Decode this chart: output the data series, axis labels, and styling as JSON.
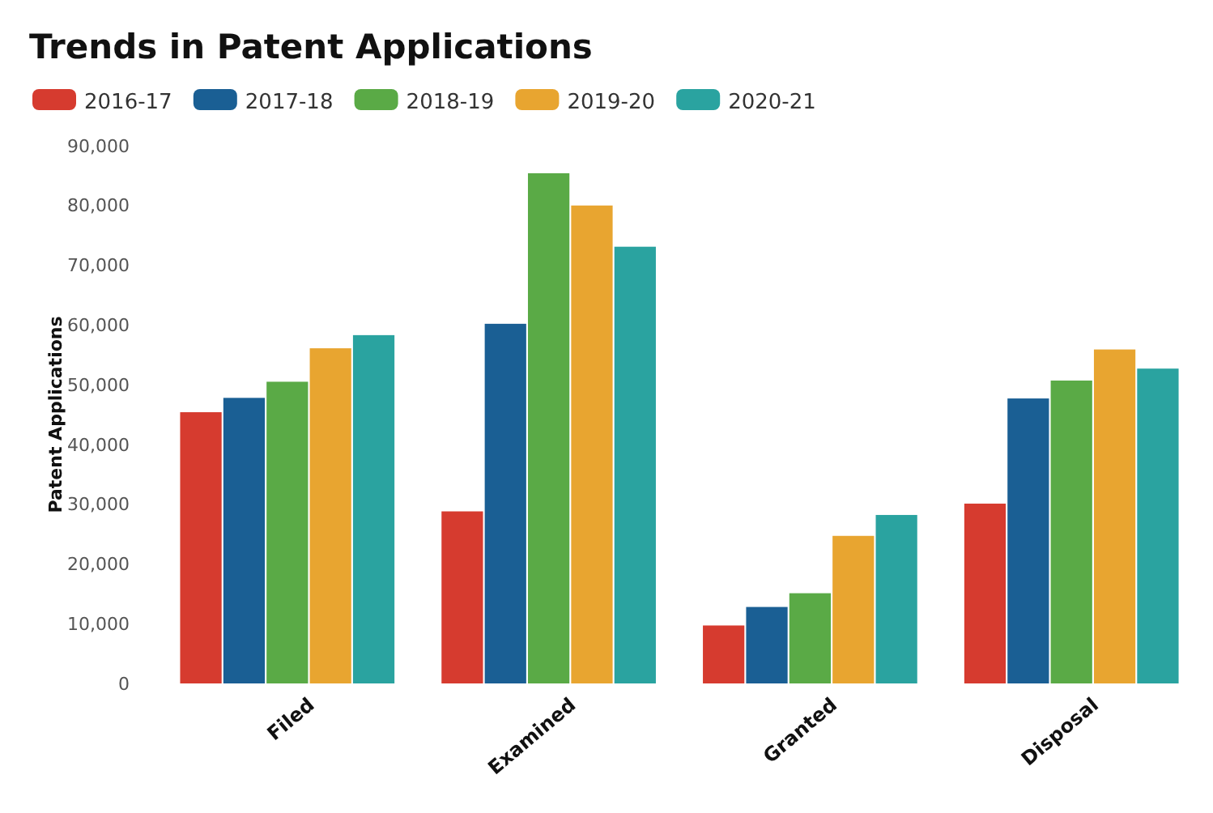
{
  "chart_data": {
    "type": "bar",
    "title": "Trends in Patent Applications",
    "ylabel": "Patent Applications",
    "categories": [
      "Filed",
      "Examined",
      "Granted",
      "Disposal"
    ],
    "series": [
      {
        "name": "2016-17",
        "color": "#d63b2f",
        "values": [
          45400,
          28800,
          9700,
          30100
        ]
      },
      {
        "name": "2017-18",
        "color": "#1a5f94",
        "values": [
          47800,
          60200,
          12800,
          47700
        ]
      },
      {
        "name": "2018-19",
        "color": "#5aaa46",
        "values": [
          50500,
          85400,
          15100,
          50700
        ]
      },
      {
        "name": "2019-20",
        "color": "#e8a530",
        "values": [
          56100,
          80000,
          24700,
          55900
        ]
      },
      {
        "name": "2020-21",
        "color": "#2aa3a0",
        "values": [
          58300,
          73100,
          28200,
          52700
        ]
      }
    ],
    "ylim": [
      0,
      90000
    ],
    "yticks": [
      0,
      {
        "value": 10000,
        "label": "10,000"
      },
      {
        "value": 20000,
        "label": "20,000"
      },
      {
        "value": 30000,
        "label": "30,000"
      },
      {
        "value": 40000,
        "label": "40,000"
      },
      {
        "value": 50000,
        "label": "50,000"
      },
      {
        "value": 60000,
        "label": "60,000"
      },
      {
        "value": 70000,
        "label": "70,000"
      },
      {
        "value": 80000,
        "label": "80,000"
      },
      {
        "value": 90000,
        "label": "90,000"
      }
    ],
    "grid": false,
    "legend": "top left"
  }
}
